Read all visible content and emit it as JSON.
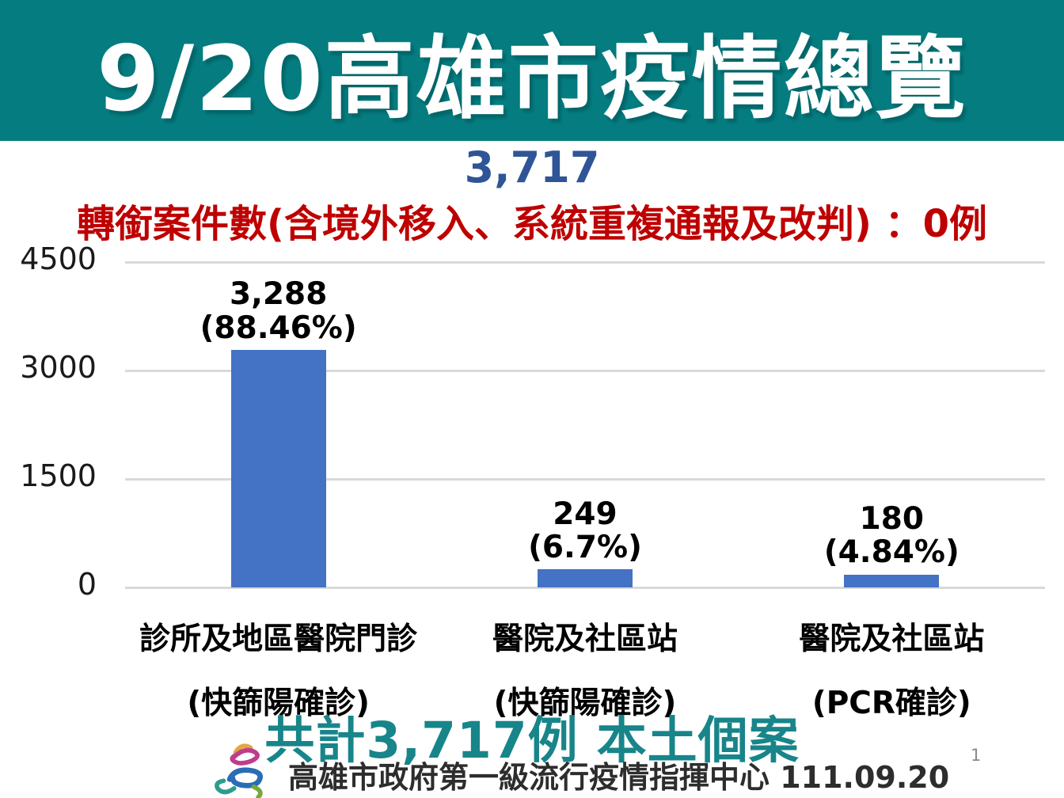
{
  "page": {
    "title": "9/20高雄市疫情總覽",
    "total_number": "3,717",
    "transfer_note": "轉銜案件數(含境外移入、系統重複通報及改判) ：0例",
    "bottom_summary": "共計3,717例 本土個案",
    "footer_text": "高雄市政府第一級流行疫情指揮中心 111.09.20",
    "page_number": "1"
  },
  "colors": {
    "header_bg": "#047C80",
    "header_text": "#FFFFFF",
    "total_number_blue": "#2F5597",
    "note_red": "#BE0000",
    "bar_blue": "#4472C4",
    "summary_teal": "#17858A",
    "gridline_gray": "#D9D9D9",
    "label_black": "#000000"
  },
  "icons": {
    "logo": "kaohsiung-city-government-logo"
  },
  "chart_data": {
    "type": "bar",
    "title": "",
    "xlabel": "",
    "ylabel": "",
    "categories": [
      "診所及地區醫院門診",
      "醫院及社區站",
      "醫院及社區站"
    ],
    "category_sublabels": [
      "(快篩陽確診)",
      "(快篩陽確診)",
      "(PCR確診)"
    ],
    "values": [
      3288,
      249,
      180
    ],
    "value_labels": [
      "3,288",
      "249",
      "180"
    ],
    "percent_labels": [
      "(88.46%)",
      "(6.7%)",
      "(4.84%)"
    ],
    "ylim": [
      0,
      4500
    ],
    "yticks": [
      0,
      1500,
      3000,
      4500
    ],
    "grid": true,
    "legend": false,
    "bar_color": "#4472C4"
  }
}
